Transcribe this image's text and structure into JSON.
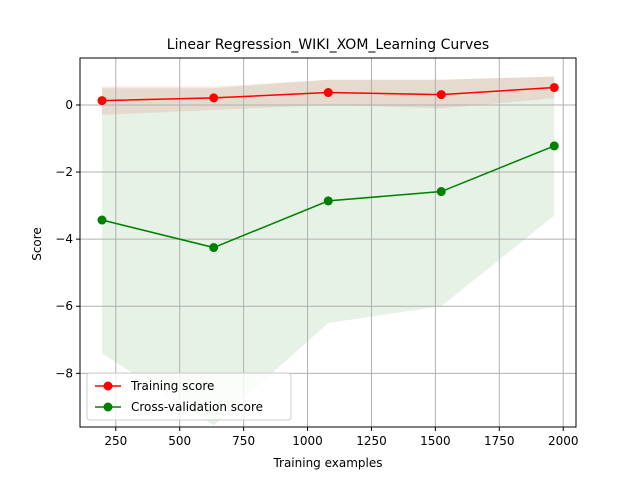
{
  "chart_data": {
    "type": "line",
    "title": "Linear Regression_WIKI_XOM_Learning Curves",
    "xlabel": "Training examples",
    "ylabel": "Score",
    "xlim": [
      110,
      2050
    ],
    "ylim": [
      -9.6,
      1.4
    ],
    "xticks": [
      250,
      500,
      750,
      1000,
      1250,
      1500,
      1750,
      2000
    ],
    "xtick_labels": [
      "250",
      "500",
      "750",
      "1000",
      "1250",
      "1500",
      "1750",
      "2000"
    ],
    "yticks": [
      0,
      -2,
      -4,
      -6,
      -8
    ],
    "ytick_labels": [
      "0",
      "−2",
      "−4",
      "−6",
      "−8"
    ],
    "grid": true,
    "legend_position": "lower-left",
    "x": [
      196,
      633,
      1081,
      1523,
      1965
    ],
    "series": [
      {
        "name": "Training score",
        "color": "#ff0000",
        "values": [
          0.13,
          0.21,
          0.37,
          0.31,
          0.52
        ],
        "band_upper": [
          0.55,
          0.55,
          0.75,
          0.75,
          0.85
        ],
        "band_lower": [
          -0.3,
          -0.15,
          0.0,
          -0.1,
          0.2
        ],
        "band_color": "#ff0000"
      },
      {
        "name": "Cross-validation score",
        "color": "#008000",
        "values": [
          -3.43,
          -4.25,
          -2.86,
          -2.58,
          -1.22
        ],
        "band_upper": [
          0.5,
          0.5,
          0.75,
          0.75,
          0.85
        ],
        "band_lower": [
          -7.4,
          -9.55,
          -6.5,
          -6.0,
          -3.3
        ],
        "band_color": "#008000"
      }
    ]
  }
}
